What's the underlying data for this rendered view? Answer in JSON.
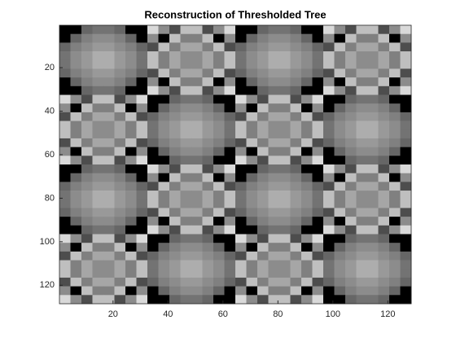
{
  "chart_data": {
    "type": "image",
    "title": "Reconstruction of Thresholded Tree",
    "tiles": [
      [
        [
          0,
          0,
          0.4,
          0.45,
          0.45,
          0.4,
          0,
          0
        ],
        [
          0,
          0.4,
          0.5,
          0.55,
          0.55,
          0.5,
          0.4,
          0
        ],
        [
          0.4,
          0.5,
          0.55,
          0.6,
          0.6,
          0.55,
          0.5,
          0.4
        ],
        [
          0.45,
          0.55,
          0.6,
          0.68,
          0.68,
          0.6,
          0.55,
          0.45
        ],
        [
          0.45,
          0.55,
          0.6,
          0.68,
          0.68,
          0.6,
          0.55,
          0.45
        ],
        [
          0.4,
          0.5,
          0.55,
          0.6,
          0.6,
          0.55,
          0.5,
          0.4
        ],
        [
          0,
          0.4,
          0.5,
          0.55,
          0.55,
          0.5,
          0.4,
          0
        ],
        [
          0,
          0,
          0.4,
          0.45,
          0.45,
          0.4,
          0,
          0
        ]
      ],
      [
        [
          0.85,
          0.55,
          0.3,
          0.75,
          0.75,
          0.3,
          0.55,
          0.85
        ],
        [
          0.55,
          0,
          0.75,
          0.5,
          0.5,
          0.75,
          0,
          0.55
        ],
        [
          0.3,
          0.75,
          0.5,
          0.65,
          0.65,
          0.5,
          0.75,
          0.3
        ],
        [
          0.75,
          0.5,
          0.65,
          0.55,
          0.55,
          0.65,
          0.5,
          0.75
        ],
        [
          0.75,
          0.5,
          0.65,
          0.55,
          0.55,
          0.65,
          0.5,
          0.75
        ],
        [
          0.3,
          0.75,
          0.5,
          0.65,
          0.65,
          0.5,
          0.75,
          0.3
        ],
        [
          0.55,
          0,
          0.75,
          0.5,
          0.5,
          0.75,
          0,
          0.55
        ],
        [
          0.85,
          0.55,
          0.3,
          0.75,
          0.75,
          0.3,
          0.55,
          0.85
        ]
      ]
    ],
    "tile_layout": [
      [
        0,
        1,
        0,
        1
      ],
      [
        1,
        0,
        1,
        0
      ],
      [
        0,
        1,
        0,
        1
      ],
      [
        1,
        0,
        1,
        0
      ]
    ],
    "xlim": [
      0.5,
      128.5
    ],
    "ylim": [
      0.5,
      128.5
    ],
    "y_reversed": true,
    "xticks": [
      20,
      40,
      60,
      80,
      100,
      120
    ],
    "yticks": [
      20,
      40,
      60,
      80,
      100,
      120
    ]
  }
}
